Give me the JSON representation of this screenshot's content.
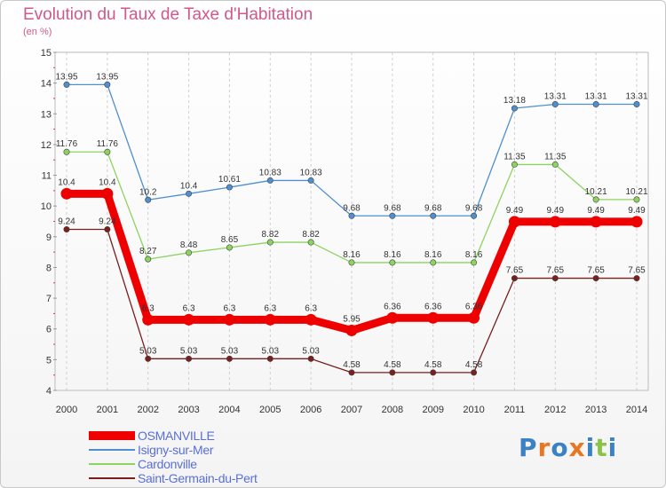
{
  "title": "Evolution du Taux de Taxe d'Habitation",
  "unit": "(en %)",
  "logo": {
    "text": "Proxiti",
    "colors": [
      "#3b82c4",
      "#e87722",
      "#3b82c4",
      "#e87722",
      "#3b82c4",
      "#8bc34a",
      "#3b82c4"
    ]
  },
  "chart_data": {
    "type": "line",
    "x": [
      "2000",
      "2001",
      "2002",
      "2003",
      "2004",
      "2005",
      "2006",
      "2007",
      "2008",
      "2009",
      "2010",
      "2011",
      "2012",
      "2013",
      "2014"
    ],
    "yticks": [
      "4",
      "5",
      "6",
      "7",
      "8",
      "9",
      "10",
      "11",
      "12",
      "13",
      "14",
      "15"
    ],
    "ylim": [
      4,
      15
    ],
    "grid": "x-dashed",
    "legend_position": "bottom-left",
    "series": [
      {
        "name": "OSMANVILLE",
        "color": "#ee0000",
        "emphasis": "thick",
        "values": [
          10.4,
          10.4,
          6.3,
          6.3,
          6.3,
          6.3,
          6.3,
          5.95,
          6.36,
          6.36,
          6.36,
          9.49,
          9.49,
          9.49,
          9.49
        ],
        "labels": [
          "10.4",
          "10.4",
          "6.3",
          "6.3",
          "6.3",
          "6.3",
          "6.3",
          "5.95",
          "6.36",
          "6.36",
          "6.36",
          "9.49",
          "9.49",
          "9.49",
          "9.49"
        ]
      },
      {
        "name": "Isigny-sur-Mer",
        "color": "#4f8fd0",
        "emphasis": "normal",
        "values": [
          13.95,
          13.95,
          10.2,
          10.4,
          10.61,
          10.83,
          10.83,
          9.68,
          9.68,
          9.68,
          9.68,
          13.18,
          13.31,
          13.31,
          13.31
        ],
        "labels": [
          "13.95",
          "13.95",
          "10.2",
          "10.4",
          "10.61",
          "10.83",
          "10.83",
          "9.68",
          "9.68",
          "9.68",
          "9.68",
          "13.18",
          "13.31",
          "13.31",
          "13.31"
        ]
      },
      {
        "name": "Cardonville",
        "color": "#8dd35f",
        "emphasis": "normal",
        "values": [
          11.76,
          11.76,
          8.27,
          8.48,
          8.65,
          8.82,
          8.82,
          8.16,
          8.16,
          8.16,
          8.16,
          11.35,
          11.35,
          10.21,
          10.21
        ],
        "labels": [
          "11.76",
          "11.76",
          "8.27",
          "8.48",
          "8.65",
          "8.82",
          "8.82",
          "8.16",
          "8.16",
          "8.16",
          "8.16",
          "11.35",
          "11.35",
          "10.21",
          "10.21"
        ]
      },
      {
        "name": "Saint-Germain-du-Pert",
        "color": "#7a1e1e",
        "emphasis": "normal",
        "values": [
          9.24,
          9.24,
          5.03,
          5.03,
          5.03,
          5.03,
          5.03,
          4.58,
          4.58,
          4.58,
          4.58,
          7.65,
          7.65,
          7.65,
          7.65
        ],
        "labels": [
          "9.24",
          "9.24",
          "5.03",
          "5.03",
          "5.03",
          "5.03",
          "5.03",
          "4.58",
          "4.58",
          "4.58",
          "4.58",
          "7.65",
          "7.65",
          "7.65",
          "7.65"
        ]
      }
    ]
  }
}
